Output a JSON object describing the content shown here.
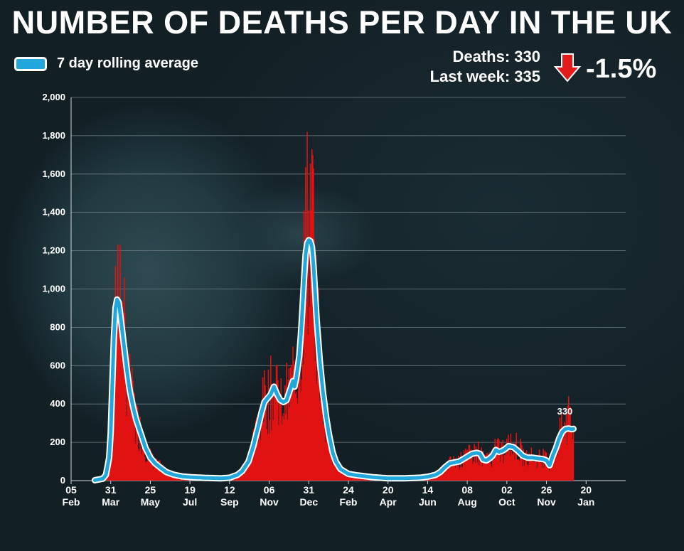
{
  "title": "NUMBER OF DEATHS PER DAY IN THE UK",
  "legend": {
    "label": "7 day rolling average"
  },
  "stats": {
    "deaths_label": "Deaths:",
    "deaths_value": "330",
    "last_week_label": "Last week:",
    "last_week_value": "335",
    "change": "-1.5%",
    "change_direction": "down",
    "arrow_color": "#e21b1b"
  },
  "colors": {
    "bar": "#e01212",
    "line": "#22a7dd",
    "line_outline": "#ffffff",
    "grid": "#6f7f85"
  },
  "chart_data": {
    "type": "bar+line",
    "title": "NUMBER OF DEATHS PER DAY IN THE UK",
    "xlabel": "",
    "ylabel": "",
    "ylim": [
      0,
      2000
    ],
    "yticks": [
      "0",
      "200",
      "400",
      "600",
      "800",
      "1,000",
      "1,200",
      "1,400",
      "1,600",
      "1,800",
      "2,000"
    ],
    "xlim_days": [
      0,
      350
    ],
    "x_ticks": [
      {
        "day": 0,
        "day_label": "05",
        "month_label": "Feb"
      },
      {
        "day": 25,
        "day_label": "31",
        "month_label": "Mar"
      },
      {
        "day": 50,
        "day_label": "25",
        "month_label": "May"
      },
      {
        "day": 75,
        "day_label": "19",
        "month_label": "Jul"
      },
      {
        "day": 100,
        "day_label": "12",
        "month_label": "Sep"
      },
      {
        "day": 125,
        "day_label": "06",
        "month_label": "Nov"
      },
      {
        "day": 150,
        "day_label": "31",
        "month_label": "Dec"
      },
      {
        "day": 175,
        "day_label": "24",
        "month_label": "Feb"
      },
      {
        "day": 200,
        "day_label": "20",
        "month_label": "Apr"
      },
      {
        "day": 225,
        "day_label": "14",
        "month_label": "Jun"
      },
      {
        "day": 250,
        "day_label": "08",
        "month_label": "Aug"
      },
      {
        "day": 275,
        "day_label": "02",
        "month_label": "Oct"
      },
      {
        "day": 300,
        "day_label": "26",
        "month_label": "Nov"
      },
      {
        "day": 325,
        "day_label": "20",
        "month_label": "Jan"
      }
    ],
    "rolling_average_keypoints": [
      [
        15,
        2
      ],
      [
        20,
        10
      ],
      [
        22,
        30
      ],
      [
        24,
        120
      ],
      [
        25,
        250
      ],
      [
        26,
        500
      ],
      [
        27,
        750
      ],
      [
        28,
        900
      ],
      [
        29,
        945
      ],
      [
        30,
        930
      ],
      [
        31,
        870
      ],
      [
        33,
        730
      ],
      [
        35,
        590
      ],
      [
        37,
        470
      ],
      [
        39,
        390
      ],
      [
        41,
        320
      ],
      [
        43,
        270
      ],
      [
        45,
        220
      ],
      [
        47,
        170
      ],
      [
        50,
        120
      ],
      [
        53,
        90
      ],
      [
        56,
        70
      ],
      [
        60,
        45
      ],
      [
        65,
        30
      ],
      [
        70,
        22
      ],
      [
        75,
        18
      ],
      [
        85,
        14
      ],
      [
        95,
        12
      ],
      [
        100,
        15
      ],
      [
        105,
        30
      ],
      [
        108,
        50
      ],
      [
        112,
        100
      ],
      [
        115,
        180
      ],
      [
        118,
        280
      ],
      [
        120,
        350
      ],
      [
        122,
        410
      ],
      [
        124,
        430
      ],
      [
        126,
        450
      ],
      [
        128,
        490
      ],
      [
        130,
        450
      ],
      [
        132,
        420
      ],
      [
        134,
        410
      ],
      [
        136,
        420
      ],
      [
        138,
        470
      ],
      [
        140,
        520
      ],
      [
        141,
        490
      ],
      [
        142,
        530
      ],
      [
        144,
        650
      ],
      [
        145,
        760
      ],
      [
        146,
        900
      ],
      [
        147,
        1050
      ],
      [
        148,
        1180
      ],
      [
        149,
        1240
      ],
      [
        150,
        1255
      ],
      [
        151,
        1250
      ],
      [
        152,
        1220
      ],
      [
        153,
        1120
      ],
      [
        154,
        980
      ],
      [
        155,
        840
      ],
      [
        157,
        620
      ],
      [
        159,
        460
      ],
      [
        161,
        330
      ],
      [
        163,
        230
      ],
      [
        165,
        150
      ],
      [
        167,
        100
      ],
      [
        170,
        60
      ],
      [
        175,
        35
      ],
      [
        180,
        28
      ],
      [
        190,
        18
      ],
      [
        200,
        12
      ],
      [
        210,
        12
      ],
      [
        220,
        15
      ],
      [
        225,
        20
      ],
      [
        230,
        30
      ],
      [
        233,
        45
      ],
      [
        236,
        70
      ],
      [
        239,
        90
      ],
      [
        242,
        95
      ],
      [
        245,
        100
      ],
      [
        248,
        115
      ],
      [
        250,
        125
      ],
      [
        253,
        140
      ],
      [
        256,
        145
      ],
      [
        258,
        140
      ],
      [
        260,
        110
      ],
      [
        262,
        105
      ],
      [
        264,
        115
      ],
      [
        266,
        130
      ],
      [
        268,
        160
      ],
      [
        270,
        150
      ],
      [
        272,
        155
      ],
      [
        274,
        165
      ],
      [
        276,
        180
      ],
      [
        279,
        175
      ],
      [
        282,
        155
      ],
      [
        285,
        130
      ],
      [
        288,
        120
      ],
      [
        291,
        120
      ],
      [
        295,
        115
      ],
      [
        298,
        112
      ],
      [
        300,
        105
      ],
      [
        302,
        80
      ],
      [
        304,
        130
      ],
      [
        306,
        170
      ],
      [
        308,
        220
      ],
      [
        310,
        255
      ],
      [
        312,
        270
      ],
      [
        314,
        272
      ],
      [
        316,
        268
      ],
      [
        317,
        270
      ]
    ],
    "daily_peaks": [
      {
        "day": 28,
        "value": 1120
      },
      {
        "day": 31,
        "value": 1230
      },
      {
        "day": 140,
        "value": 700
      },
      {
        "day": 149,
        "value": 1820
      },
      {
        "day": 152,
        "value": 1730
      },
      {
        "day": 314,
        "value": 440
      }
    ],
    "last_value_label": "330"
  }
}
